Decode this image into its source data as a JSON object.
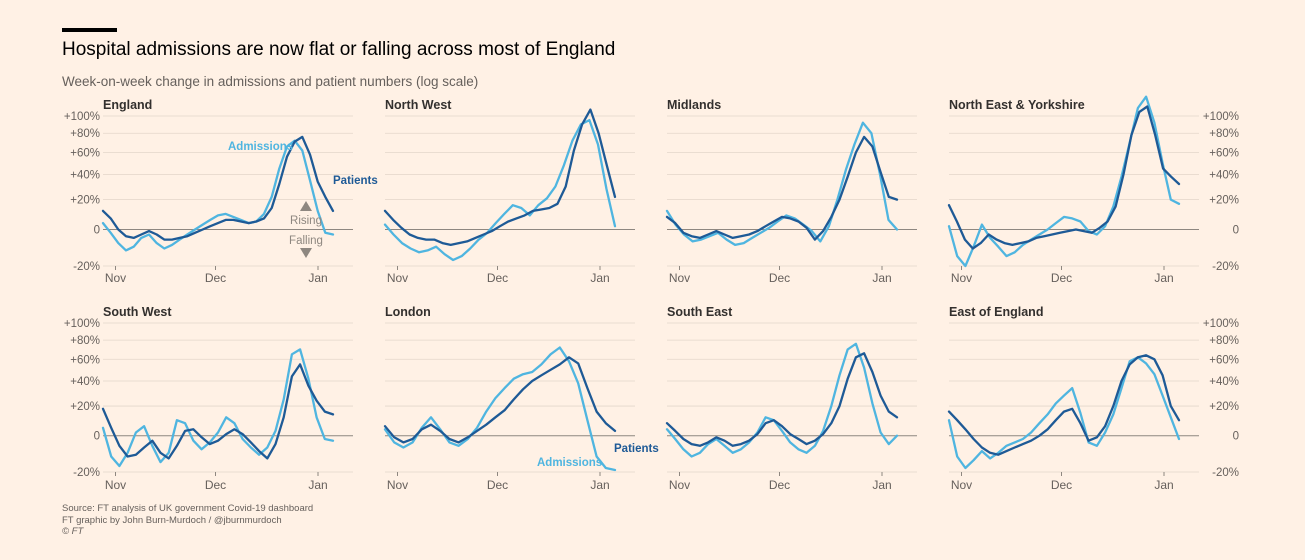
{
  "title": "Hospital admissions are now flat or falling across most of England",
  "subtitle": "Week-on-week change in admissions and patient numbers (log scale)",
  "footer": {
    "source": "Source: FT analysis of UK government Covid-19 dashboard",
    "graphic": "FT graphic by John Burn-Murdoch / @jburnmurdoch",
    "credit": "© FT"
  },
  "colors": {
    "admissions": "#4fb5e0",
    "patients": "#1e5a96",
    "background": "#fff1e5",
    "grid": "#e3d6ca",
    "zero_line": "#8e8780"
  },
  "chart_data": {
    "type": "line",
    "scale": "log",
    "x_ticks": [
      "Nov",
      "Dec",
      "Jan"
    ],
    "y_ticks": [
      {
        "value": 100,
        "label": "+100%"
      },
      {
        "value": 80,
        "label": "+80%"
      },
      {
        "value": 60,
        "label": "+60%"
      },
      {
        "value": 40,
        "label": "+40%"
      },
      {
        "value": 20,
        "label": "+20%"
      },
      {
        "value": 0,
        "label": "0"
      },
      {
        "value": -20,
        "label": "-20%"
      }
    ],
    "ylim": [
      -20,
      100
    ],
    "annotations": {
      "rising": "Rising",
      "falling": "Falling"
    },
    "series_names": {
      "admissions": "Admissions",
      "patients": "Patients"
    },
    "panels": [
      {
        "name": "England",
        "admissions": [
          4,
          -2,
          -8,
          -12,
          -10,
          -5,
          -3,
          -8,
          -11,
          -9,
          -6,
          -3,
          0,
          3,
          6,
          9,
          10,
          8,
          6,
          4,
          5,
          10,
          22,
          45,
          66,
          72,
          62,
          35,
          12,
          -2,
          -3
        ],
        "patients": [
          12,
          7,
          0,
          -4,
          -5,
          -3,
          -1,
          -3,
          -6,
          -6,
          -5,
          -4,
          -2,
          0,
          2,
          4,
          6,
          6,
          5,
          4,
          5,
          7,
          14,
          32,
          56,
          71,
          76,
          58,
          34,
          22,
          12
        ]
      },
      {
        "name": "North West",
        "admissions": [
          3,
          -3,
          -8,
          -11,
          -13,
          -12,
          -10,
          -14,
          -17,
          -15,
          -11,
          -6,
          -2,
          4,
          10,
          16,
          14,
          9,
          16,
          21,
          30,
          48,
          72,
          90,
          95,
          68,
          28,
          2
        ],
        "patients": [
          12,
          6,
          1,
          -3,
          -5,
          -6,
          -6,
          -8,
          -9,
          -8,
          -7,
          -5,
          -3,
          -1,
          2,
          5,
          7,
          9,
          12,
          13,
          14,
          17,
          30,
          62,
          90,
          108,
          80,
          48,
          22
        ]
      },
      {
        "name": "Midlands",
        "admissions": [
          12,
          3,
          -3,
          -7,
          -6,
          -4,
          -2,
          -6,
          -9,
          -8,
          -5,
          -2,
          1,
          5,
          9,
          7,
          3,
          -1,
          -7,
          2,
          20,
          44,
          68,
          92,
          80,
          40,
          6,
          0
        ],
        "patients": [
          8,
          4,
          -2,
          -4,
          -5,
          -3,
          -1,
          -3,
          -5,
          -4,
          -3,
          -1,
          2,
          5,
          8,
          7,
          5,
          1,
          -6,
          -1,
          8,
          20,
          38,
          60,
          76,
          66,
          42,
          22,
          20
        ]
      },
      {
        "name": "North East & Yorkshire",
        "admissions": [
          2,
          -15,
          -22,
          -10,
          3,
          -5,
          -10,
          -15,
          -13,
          -9,
          -6,
          -3,
          0,
          4,
          8,
          7,
          5,
          -1,
          -3,
          2,
          15,
          38,
          70,
          110,
          125,
          92,
          50,
          20,
          17
        ],
        "patients": [
          16,
          5,
          -6,
          -11,
          -8,
          -3,
          -6,
          -8,
          -9,
          -8,
          -7,
          -5,
          -4,
          -3,
          -2,
          -1,
          0,
          -1,
          -2,
          1,
          5,
          15,
          40,
          78,
          105,
          112,
          78,
          45,
          38,
          32
        ]
      },
      {
        "name": "South West",
        "admissions": [
          5,
          -12,
          -17,
          -10,
          2,
          6,
          -6,
          -15,
          -10,
          10,
          8,
          -3,
          -8,
          -4,
          2,
          12,
          8,
          -2,
          -7,
          -11,
          -7,
          3,
          25,
          65,
          70,
          42,
          12,
          -2,
          -3
        ],
        "patients": [
          18,
          5,
          -6,
          -12,
          -11,
          -7,
          -3,
          -10,
          -13,
          -6,
          3,
          4,
          -1,
          -5,
          -3,
          1,
          4,
          1,
          -4,
          -9,
          -13,
          -5,
          12,
          44,
          55,
          36,
          24,
          16,
          14
        ]
      },
      {
        "name": "London",
        "admissions": [
          4,
          -4,
          -7,
          -4,
          5,
          12,
          4,
          -4,
          -6,
          -2,
          5,
          16,
          26,
          34,
          42,
          46,
          48,
          55,
          65,
          72,
          58,
          38,
          10,
          -12,
          -18,
          -19
        ],
        "patients": [
          6,
          -1,
          -4,
          -2,
          4,
          7,
          3,
          -2,
          -4,
          -1,
          3,
          7,
          12,
          17,
          25,
          33,
          40,
          45,
          50,
          55,
          62,
          56,
          34,
          16,
          8,
          3
        ]
      },
      {
        "name": "South East",
        "admissions": [
          4,
          -2,
          -8,
          -12,
          -10,
          -5,
          -2,
          -6,
          -10,
          -8,
          -4,
          2,
          12,
          10,
          3,
          -4,
          -8,
          -10,
          -6,
          3,
          20,
          45,
          70,
          76,
          52,
          22,
          2,
          -5,
          0
        ],
        "patients": [
          8,
          3,
          -2,
          -5,
          -6,
          -4,
          -1,
          -3,
          -6,
          -5,
          -3,
          1,
          8,
          10,
          6,
          1,
          -2,
          -5,
          -3,
          1,
          8,
          20,
          42,
          62,
          66,
          48,
          28,
          16,
          12
        ]
      },
      {
        "name": "East of England",
        "admissions": [
          10,
          -12,
          -18,
          -14,
          -9,
          -13,
          -10,
          -6,
          -4,
          -2,
          2,
          8,
          14,
          22,
          28,
          34,
          15,
          -4,
          -6,
          2,
          14,
          34,
          58,
          62,
          56,
          46,
          28,
          12,
          -2
        ],
        "patients": [
          16,
          10,
          4,
          -2,
          -7,
          -10,
          -11,
          -9,
          -7,
          -5,
          -3,
          0,
          4,
          10,
          16,
          18,
          8,
          -3,
          -1,
          6,
          20,
          40,
          55,
          62,
          64,
          60,
          45,
          20,
          10
        ]
      }
    ]
  }
}
